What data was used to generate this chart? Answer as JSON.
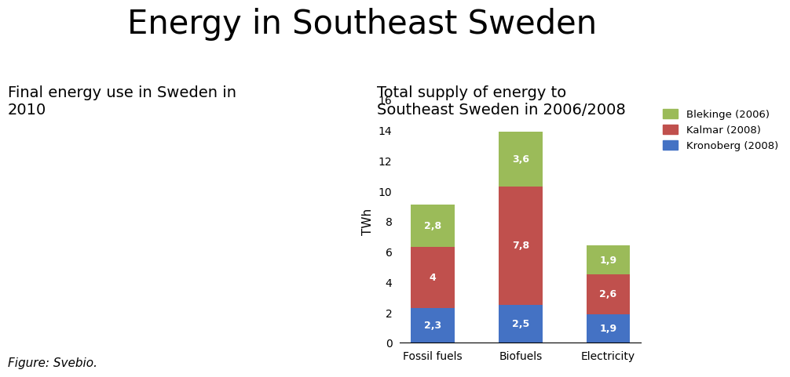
{
  "title": "Energy in Southeast Sweden",
  "left_title": "Final energy use in Sweden in\n2010",
  "right_title": "Total supply of energy to\nSoutheast Sweden in 2006/2008",
  "categories": [
    "Fossil fuels",
    "Biofuels",
    "Electricity"
  ],
  "series": [
    {
      "label": "Kronoberg (2008)",
      "color": "#4472C4",
      "values": [
        2.3,
        2.5,
        1.9
      ]
    },
    {
      "label": "Kalmar (2008)",
      "color": "#C0504D",
      "values": [
        4.0,
        7.8,
        2.6
      ]
    },
    {
      "label": "Blekinge (2006)",
      "color": "#9BBB59",
      "values": [
        2.8,
        3.6,
        1.9
      ]
    }
  ],
  "value_labels": [
    [
      "2,3",
      "2,5",
      "1,9"
    ],
    [
      "4",
      "7,8",
      "2,6"
    ],
    [
      "2,8",
      "3,6",
      "1,9"
    ]
  ],
  "ylabel": "TWh",
  "ylim": [
    0,
    16
  ],
  "yticks": [
    0,
    2,
    4,
    6,
    8,
    10,
    12,
    14,
    16
  ],
  "figure_source": "Figure: Svebio.",
  "background_color": "#FFFFFF",
  "title_fontsize": 30,
  "subtitle_fontsize": 14
}
